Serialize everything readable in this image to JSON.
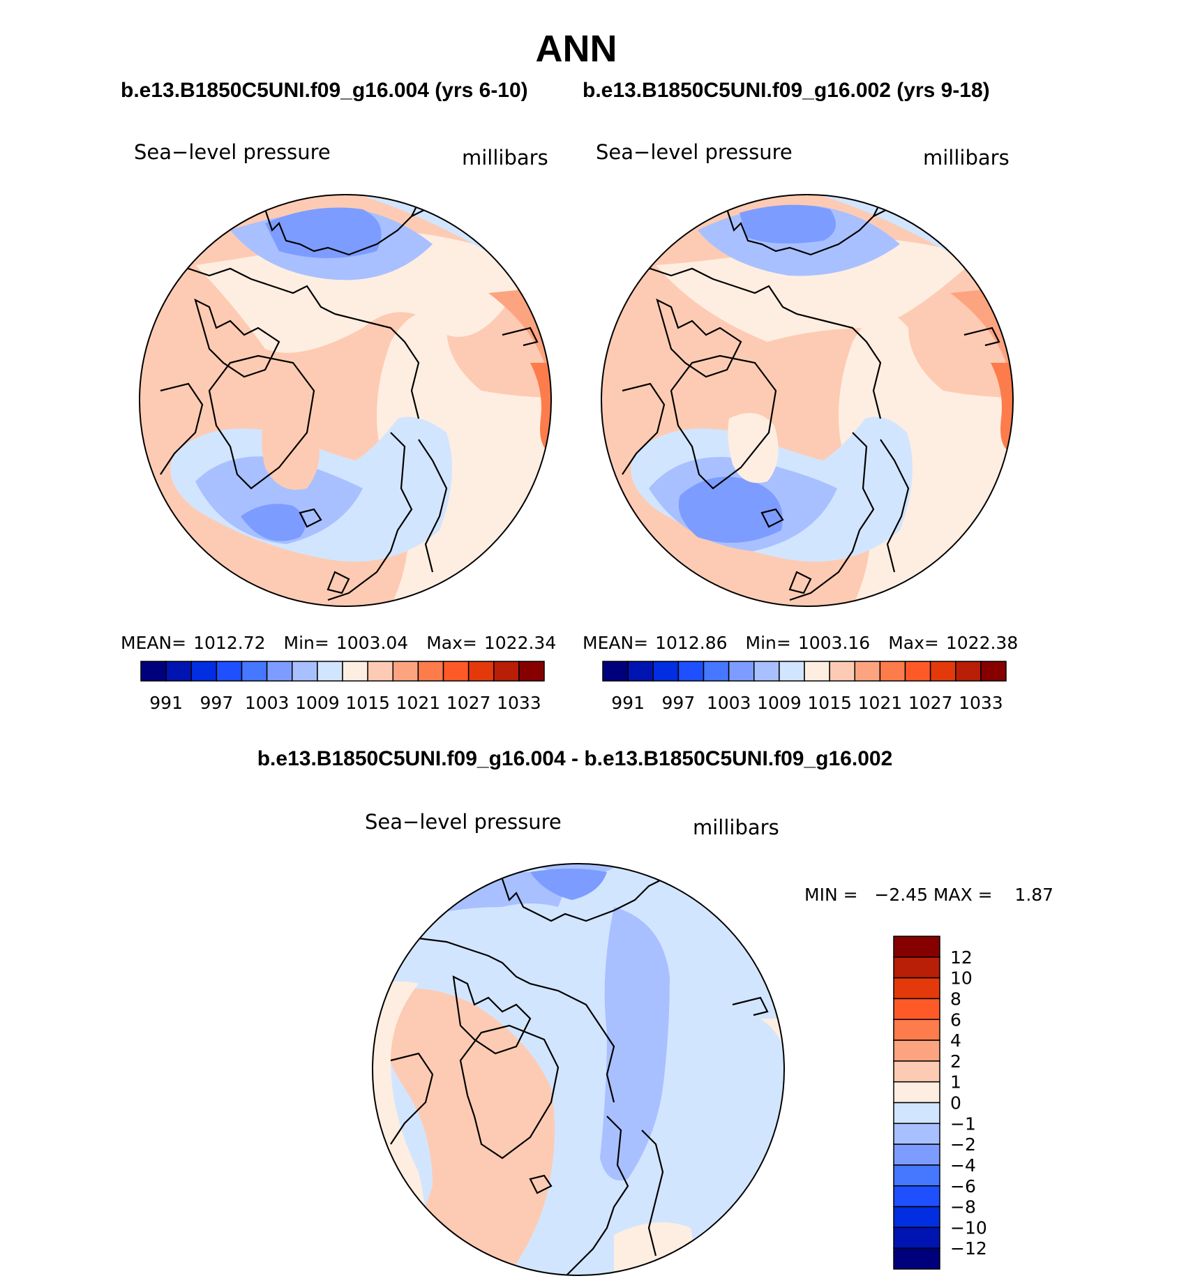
{
  "title": "ANN",
  "colors": {
    "abs_scale": [
      "#00007d",
      "#0014b2",
      "#002ee0",
      "#1e50ff",
      "#4677ff",
      "#7d9cff",
      "#a8c0ff",
      "#d2e5fe",
      "#feeee1",
      "#fdcbb3",
      "#fca480",
      "#fd7c4c",
      "#fe5a28",
      "#e43a0b",
      "#b91e06",
      "#870000"
    ],
    "diff_scale": [
      "#00007d",
      "#0014b2",
      "#002ee0",
      "#1e50ff",
      "#4677ff",
      "#7d9cff",
      "#a8c0ff",
      "#d2e5fe",
      "#feeee1",
      "#fdcbb3",
      "#fca480",
      "#fd7c4c",
      "#fe5a28",
      "#e43a0b",
      "#b91e06",
      "#870000"
    ]
  },
  "panels": [
    {
      "case_title": "b.e13.B1850C5UNI.f09_g16.004 (yrs 6-10)",
      "left_label": "Sea−level pressure",
      "right_label": "millibars",
      "stats": {
        "mean_label": "MEAN=",
        "mean": "1012.72",
        "min_label": "Min=",
        "min": "1003.04",
        "max_label": "Max=",
        "max": "1022.34"
      },
      "colorbar_ticks": [
        "991",
        "997",
        "1003",
        "1009",
        "1015",
        "1021",
        "1027",
        "1033"
      ]
    },
    {
      "case_title": "b.e13.B1850C5UNI.f09_g16.002 (yrs 9-18)",
      "left_label": "Sea−level pressure",
      "right_label": "millibars",
      "stats": {
        "mean_label": "MEAN=",
        "mean": "1012.86",
        "min_label": "Min=",
        "min": "1003.16",
        "max_label": "Max=",
        "max": "1022.38"
      },
      "colorbar_ticks": [
        "991",
        "997",
        "1003",
        "1009",
        "1015",
        "1021",
        "1027",
        "1033"
      ]
    }
  ],
  "diff_panel": {
    "case_title": "b.e13.B1850C5UNI.f09_g16.004 - b.e13.B1850C5UNI.f09_g16.002",
    "left_label": "Sea−level pressure",
    "right_label": "millibars",
    "stats_text": "MIN =   −2.45 MAX =    1.87",
    "colorbar_ticks": [
      "12",
      "10",
      "8",
      "6",
      "4",
      "2",
      "1",
      "0",
      "−1",
      "−2",
      "−4",
      "−6",
      "−8",
      "−10",
      "−12"
    ]
  }
}
